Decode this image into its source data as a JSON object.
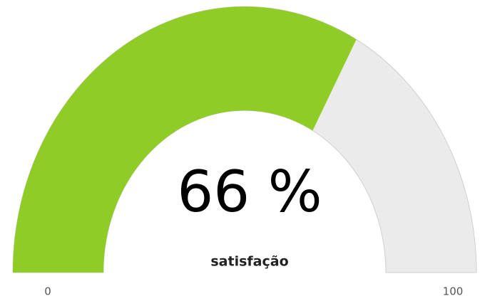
{
  "chart_data": {
    "type": "gauge",
    "title": "satisfação",
    "value": 66,
    "value_labels": [
      "66 %"
    ],
    "color": "#8fcc26",
    "track_color": "#ebebeb",
    "ylim": [
      0,
      100
    ],
    "yticks": [
      0,
      100
    ]
  }
}
